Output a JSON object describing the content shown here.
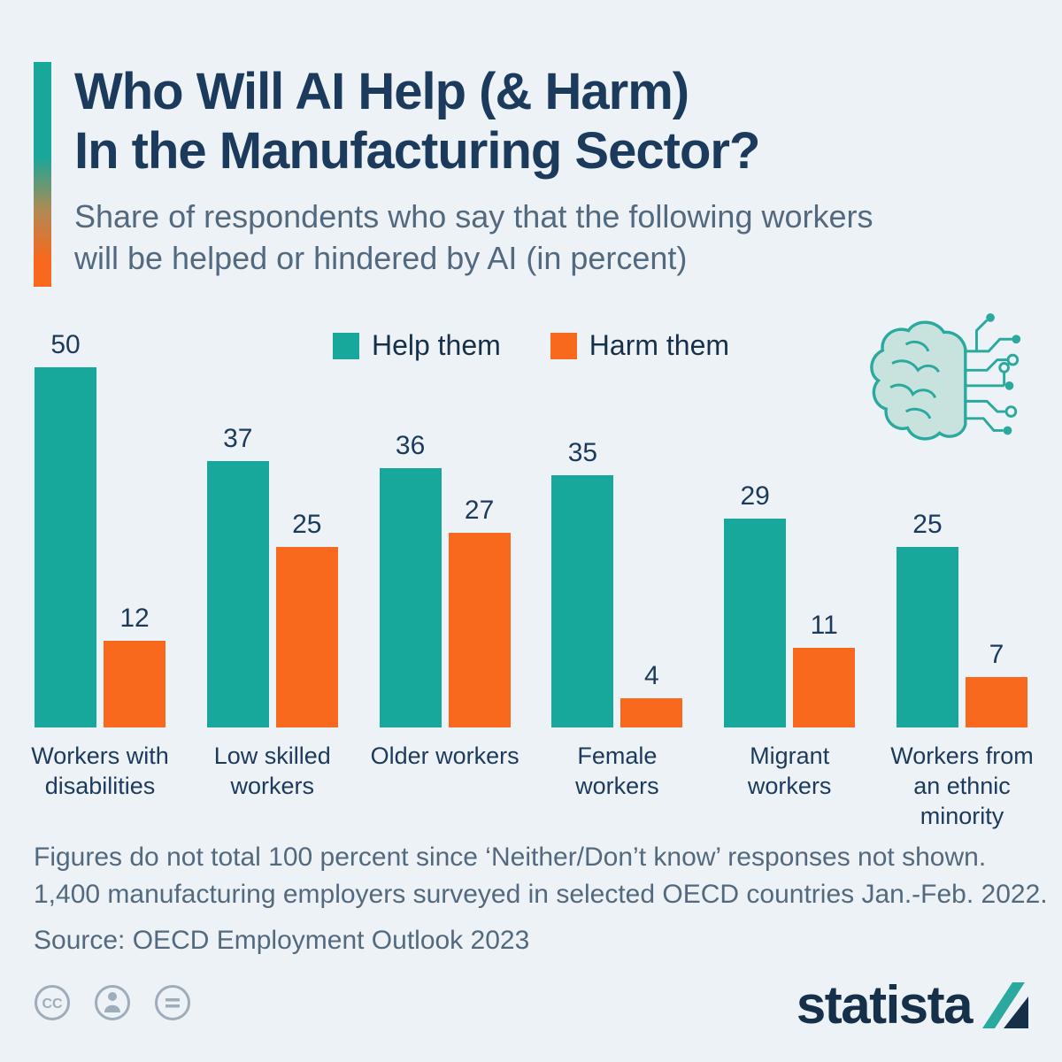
{
  "header": {
    "title_line1": "Who Will AI Help (& Harm)",
    "title_line2": "In the Manufacturing Sector?",
    "subtitle": "Share of respondents who say that the following workers will be helped or hindered by AI (in percent)"
  },
  "chart_data": {
    "type": "bar",
    "title": "Who Will AI Help (& Harm) In the Manufacturing Sector?",
    "subtitle": "Share of respondents who say that the following workers will be helped or hindered by AI (in percent)",
    "categories": [
      "Workers with disabilities",
      "Low skilled workers",
      "Older workers",
      "Female workers",
      "Migrant workers",
      "Workers from an ethnic minority"
    ],
    "series": [
      {
        "name": "Help them",
        "color": "#17a79b",
        "values": [
          50,
          37,
          36,
          35,
          29,
          25
        ]
      },
      {
        "name": "Harm them",
        "color": "#f8681d",
        "values": [
          12,
          25,
          27,
          4,
          11,
          7
        ]
      }
    ],
    "xlabel": "",
    "ylabel": "",
    "ylim": [
      0,
      50
    ],
    "grid": false,
    "legend_position": "top-center",
    "value_labels": true
  },
  "footer": {
    "note_line1": "Figures do not total 100 percent since ‘Neither/Don’t know’ responses not shown.",
    "note_line2": "1,400 manufacturing employers surveyed in selected OECD countries Jan.-Feb. 2022.",
    "source": "Source: OECD Employment Outlook 2023",
    "brand": "statista",
    "license": {
      "cc_text": "CC"
    }
  },
  "colors": {
    "help": "#17a79b",
    "harm": "#f8681d",
    "navy": "#1b3a5c",
    "muted_text": "#53697e",
    "background": "#edf2f7",
    "icon_gray": "#9fadba"
  }
}
